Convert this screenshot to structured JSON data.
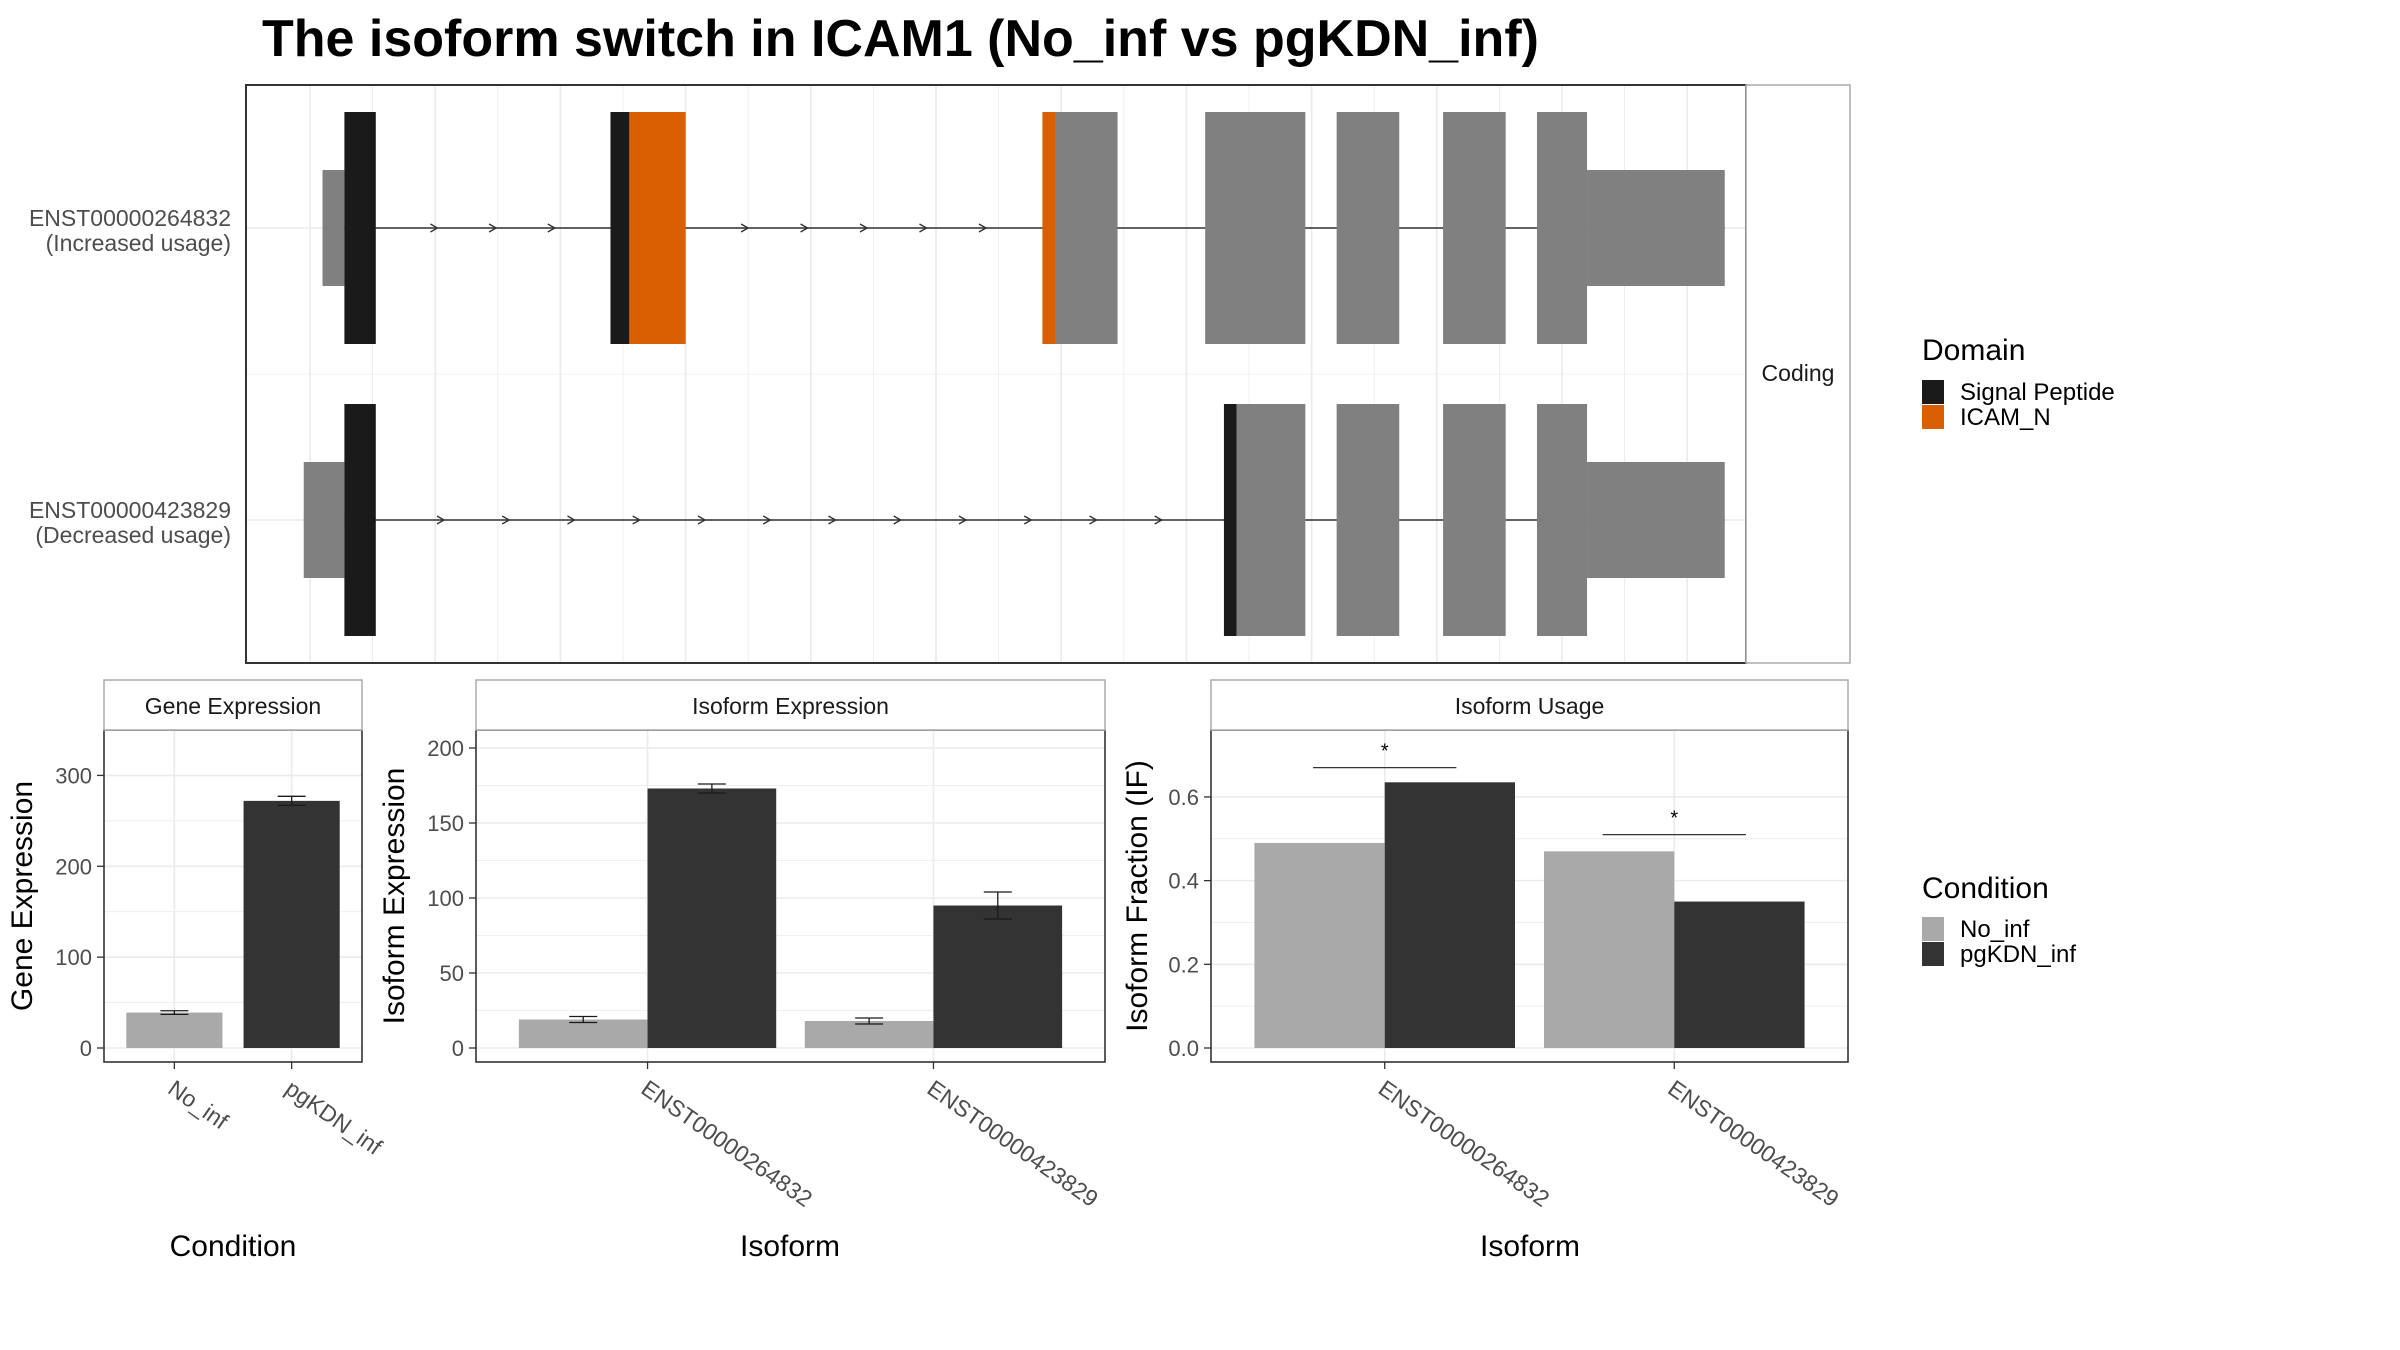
{
  "title": "The isoform switch in ICAM1 (No_inf vs pgKDN_inf)",
  "colors": {
    "signal_peptide": "#1a1a1a",
    "icam_n": "#d95f02",
    "exon": "#808080",
    "no_inf": "#a9a9a9",
    "pgkdn_inf": "#333333",
    "grid": "#ebebeb",
    "panel_border": "#333333",
    "strip_border": "#aaaaaa"
  },
  "chart_data": [
    {
      "type": "transcript-structure",
      "strip_label": "Coding",
      "transcripts": [
        {
          "id": "ENST00000264832",
          "usage": "(Increased usage)",
          "exons": [
            {
              "start": 0.2,
              "end": 0.55,
              "kind": "utr"
            },
            {
              "start": 0.55,
              "end": 1.05,
              "kind": "cds"
            },
            {
              "start": 4.8,
              "end": 6.0,
              "kind": "cds"
            },
            {
              "start": 11.7,
              "end": 12.9,
              "kind": "cds"
            },
            {
              "start": 14.3,
              "end": 15.9,
              "kind": "cds"
            },
            {
              "start": 16.4,
              "end": 17.4,
              "kind": "cds"
            },
            {
              "start": 18.1,
              "end": 19.1,
              "kind": "cds"
            },
            {
              "start": 19.6,
              "end": 20.4,
              "kind": "cds"
            },
            {
              "start": 20.4,
              "end": 22.6,
              "kind": "utr"
            }
          ],
          "domains": [
            {
              "name": "Signal Peptide",
              "start": 0.55,
              "end": 1.05
            },
            {
              "name": "Signal Peptide",
              "start": 4.8,
              "end": 5.1
            },
            {
              "name": "ICAM_N",
              "start": 5.1,
              "end": 6.0
            },
            {
              "name": "ICAM_N",
              "start": 11.7,
              "end": 11.9
            }
          ]
        },
        {
          "id": "ENST00000423829",
          "usage": "(Decreased usage)",
          "exons": [
            {
              "start": -0.1,
              "end": 0.55,
              "kind": "utr"
            },
            {
              "start": 0.55,
              "end": 1.05,
              "kind": "cds"
            },
            {
              "start": 14.6,
              "end": 15.9,
              "kind": "cds"
            },
            {
              "start": 16.4,
              "end": 17.4,
              "kind": "cds"
            },
            {
              "start": 18.1,
              "end": 19.1,
              "kind": "cds"
            },
            {
              "start": 19.6,
              "end": 20.4,
              "kind": "cds"
            },
            {
              "start": 20.4,
              "end": 22.6,
              "kind": "utr"
            }
          ],
          "domains": [
            {
              "name": "Signal Peptide",
              "start": 0.55,
              "end": 1.05
            },
            {
              "name": "Signal Peptide",
              "start": 14.6,
              "end": 14.8
            }
          ]
        }
      ],
      "legend": {
        "title": "Domain",
        "entries": [
          "Signal Peptide",
          "ICAM_N"
        ]
      }
    },
    {
      "type": "bar",
      "strip_label": "Gene Expression",
      "categories": [
        "No_inf",
        "pgKDN_inf"
      ],
      "values": [
        39,
        272
      ],
      "errors": [
        2,
        5
      ],
      "ylabel": "Gene Expression",
      "xlabel": "Condition",
      "ylim": [
        0,
        350
      ],
      "yticks": [
        0,
        100,
        200,
        300
      ]
    },
    {
      "type": "bar",
      "strip_label": "Isoform Expression",
      "categories": [
        "ENST00000264832",
        "ENST00000423829"
      ],
      "series": [
        {
          "name": "No_inf",
          "values": [
            19,
            18
          ],
          "errors": [
            2,
            2
          ]
        },
        {
          "name": "pgKDN_inf",
          "values": [
            173,
            95
          ],
          "errors": [
            3,
            9
          ]
        }
      ],
      "ylabel": "Isoform Expression",
      "xlabel": "Isoform",
      "ylim": [
        0,
        212
      ],
      "yticks": [
        0,
        50,
        100,
        150,
        200
      ]
    },
    {
      "type": "bar",
      "strip_label": "Isoform Usage",
      "categories": [
        "ENST00000264832",
        "ENST00000423829"
      ],
      "series": [
        {
          "name": "No_inf",
          "values": [
            0.49,
            0.47
          ]
        },
        {
          "name": "pgKDN_inf",
          "values": [
            0.635,
            0.35
          ]
        }
      ],
      "significance": [
        {
          "label": "*",
          "y": 0.67
        },
        {
          "label": "*",
          "y": 0.51
        }
      ],
      "ylabel": "Isoform Fraction (IF)",
      "xlabel": "Isoform",
      "ylim": [
        0,
        0.76
      ],
      "yticks": [
        0.0,
        0.2,
        0.4,
        0.6
      ],
      "ytick_labels": [
        "0.0",
        "0.2",
        "0.4",
        "0.6"
      ],
      "legend": {
        "title": "Condition",
        "entries": [
          "No_inf",
          "pgKDN_inf"
        ]
      }
    }
  ]
}
